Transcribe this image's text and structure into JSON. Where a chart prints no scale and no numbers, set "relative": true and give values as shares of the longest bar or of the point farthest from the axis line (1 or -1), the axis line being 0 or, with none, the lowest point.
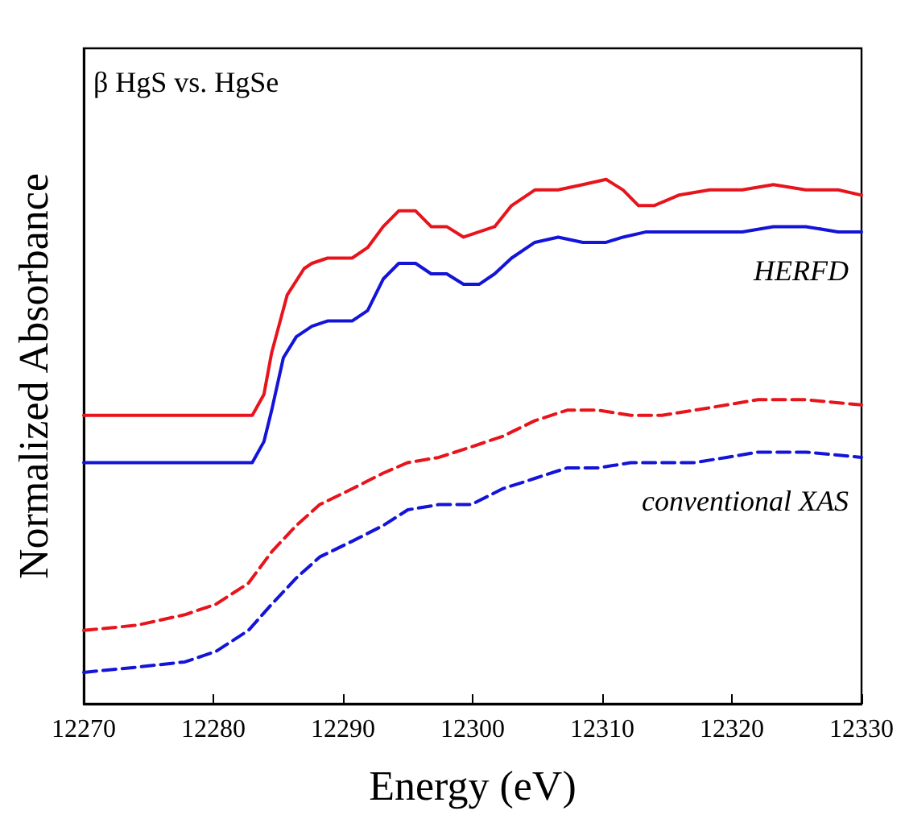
{
  "chart_data": {
    "type": "line",
    "title": "β HgS vs. HgSe",
    "xlabel": "Energy (eV)",
    "ylabel": "Normalized Absorbance",
    "relative": true,
    "xlim": [
      12270,
      12330
    ],
    "xticks": [
      12270,
      12280,
      12290,
      12300,
      12310,
      12320,
      12330
    ],
    "tick_labels": "x",
    "grid": false,
    "marker": "none",
    "annotations": [
      "HERFD",
      "conventional XAS"
    ],
    "series": [
      {
        "color": "#e8141c",
        "line_style": "solid",
        "x": [
          12270,
          12283,
          12283.9,
          12284.5,
          12285.7,
          12287,
          12287.6,
          12288.8,
          12290.7,
          12291.9,
          12293.1,
          12294.3,
          12295.6,
          12296.8,
          12298,
          12299.3,
          12300.5,
          12301.7,
          12303,
          12304.8,
          12306.6,
          12308.5,
          12310.3,
          12311.6,
          12312.8,
          12314,
          12315.9,
          12318.3,
          12320.8,
          12323.2,
          12325.7,
          12328.2,
          12330
        ],
        "values": [
          0.55,
          0.55,
          0.59,
          0.67,
          0.78,
          0.83,
          0.84,
          0.85,
          0.85,
          0.87,
          0.91,
          0.94,
          0.94,
          0.91,
          0.91,
          0.89,
          0.9,
          0.91,
          0.95,
          0.98,
          0.98,
          0.99,
          1.0,
          0.98,
          0.95,
          0.95,
          0.97,
          0.98,
          0.98,
          0.99,
          0.98,
          0.98,
          0.97
        ]
      },
      {
        "color": "#1414d8",
        "line_style": "solid",
        "x": [
          12270,
          12283,
          12283.9,
          12284.5,
          12285.4,
          12286.4,
          12287.6,
          12288.8,
          12290.7,
          12291.9,
          12293.1,
          12294.3,
          12295.6,
          12296.8,
          12298,
          12299.3,
          12300.5,
          12301.7,
          12303,
          12304.8,
          12306.6,
          12308.5,
          12310.3,
          12311.6,
          12313.4,
          12315.9,
          12318.3,
          12320.8,
          12323.2,
          12325.7,
          12328.2,
          12330
        ],
        "values": [
          0.46,
          0.46,
          0.5,
          0.56,
          0.66,
          0.7,
          0.72,
          0.73,
          0.73,
          0.75,
          0.81,
          0.84,
          0.84,
          0.82,
          0.82,
          0.8,
          0.8,
          0.82,
          0.85,
          0.88,
          0.89,
          0.88,
          0.88,
          0.89,
          0.9,
          0.9,
          0.9,
          0.9,
          0.91,
          0.91,
          0.9,
          0.9
        ]
      },
      {
        "color": "#e8141c",
        "line_style": "dashed",
        "x": [
          12270,
          12274.1,
          12277.8,
          12280.2,
          12282.7,
          12284.5,
          12286.4,
          12288.2,
          12290.7,
          12293.1,
          12295,
          12297.4,
          12299.9,
          12302.3,
          12304.8,
          12307.3,
          12309.7,
          12312.2,
          12314.6,
          12317.1,
          12319.6,
          12322,
          12325.7,
          12330
        ],
        "values": [
          0.14,
          0.15,
          0.17,
          0.19,
          0.23,
          0.29,
          0.34,
          0.38,
          0.41,
          0.44,
          0.46,
          0.47,
          0.49,
          0.51,
          0.54,
          0.56,
          0.56,
          0.55,
          0.55,
          0.56,
          0.57,
          0.58,
          0.58,
          0.57
        ]
      },
      {
        "color": "#1414d8",
        "line_style": "dashed",
        "x": [
          12270,
          12274.1,
          12277.8,
          12280.2,
          12282.7,
          12284.5,
          12286.4,
          12288.2,
          12290.7,
          12293.1,
          12295,
          12297.4,
          12299.9,
          12302.3,
          12304.8,
          12307.3,
          12309.7,
          12312.2,
          12314.6,
          12317.1,
          12319.6,
          12322,
          12325.7,
          12330
        ],
        "values": [
          0.06,
          0.07,
          0.08,
          0.1,
          0.14,
          0.19,
          0.24,
          0.28,
          0.31,
          0.34,
          0.37,
          0.38,
          0.38,
          0.41,
          0.43,
          0.45,
          0.45,
          0.46,
          0.46,
          0.46,
          0.47,
          0.48,
          0.48,
          0.47
        ]
      }
    ]
  }
}
